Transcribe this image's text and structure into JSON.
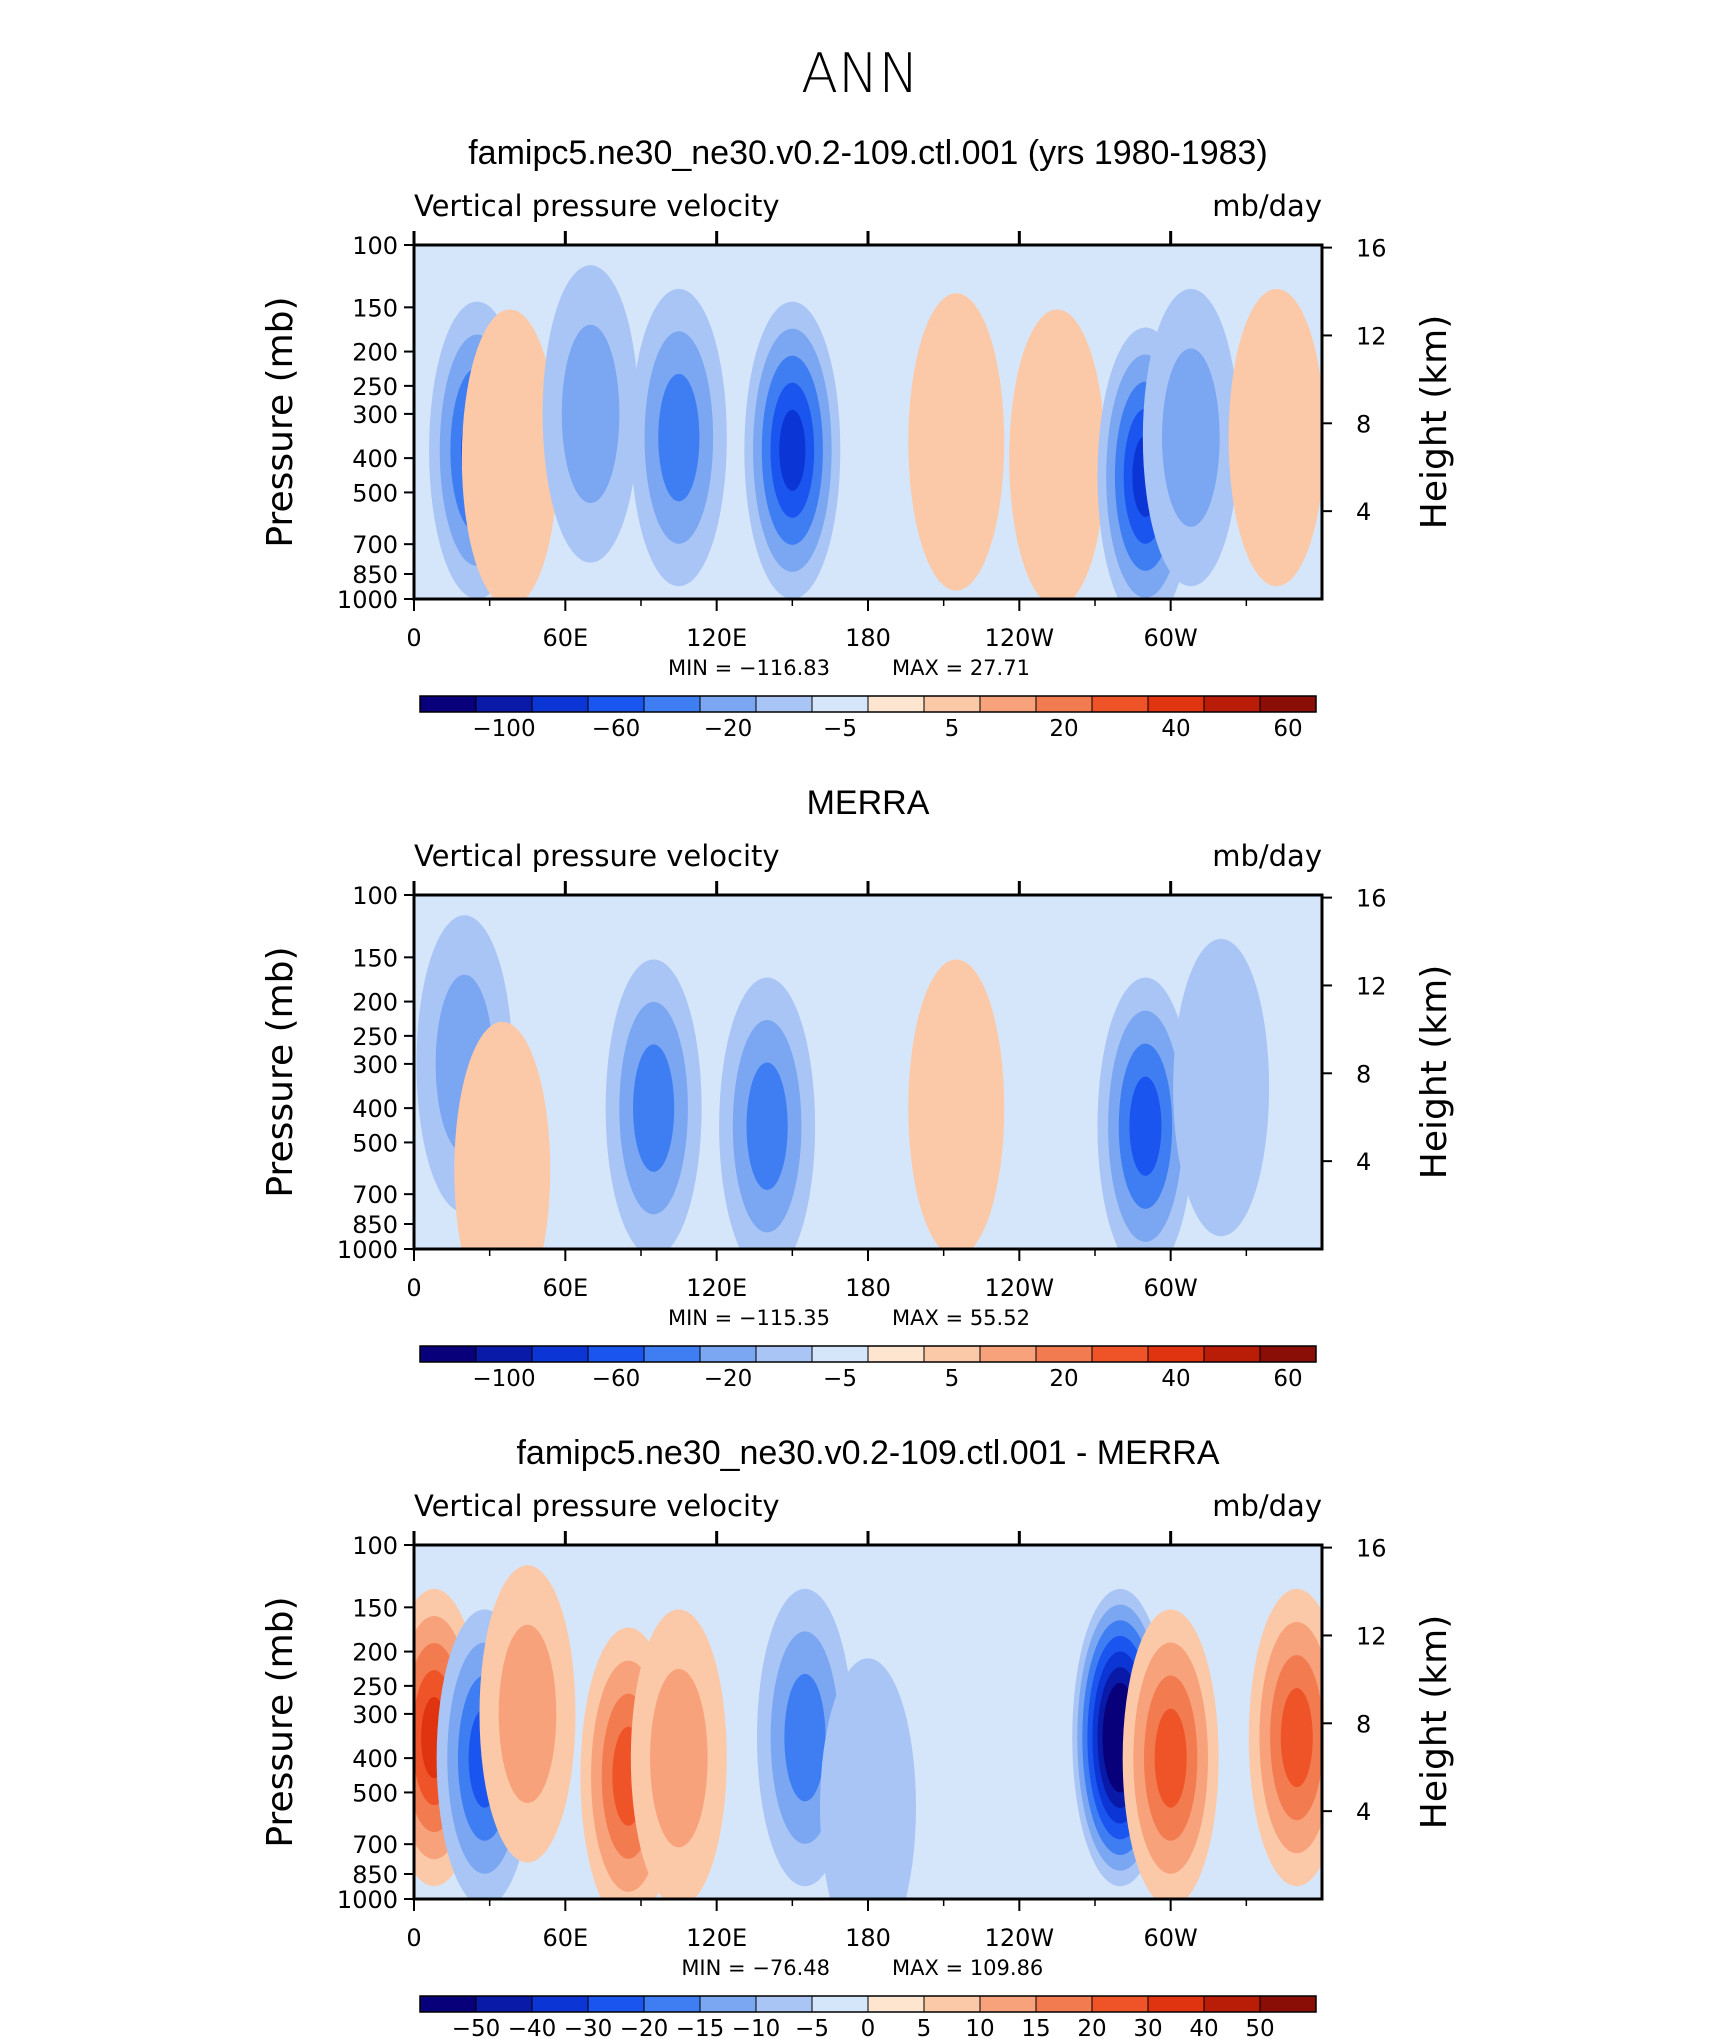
{
  "figure": {
    "title": "ANN"
  },
  "chart_data": [
    {
      "type": "heatmap",
      "title": "famipc5.ne30_ne30.v0.2-109.ctl.001 (yrs 1980-1983)",
      "left_label": "Vertical pressure velocity",
      "right_label": "mb/day",
      "ylabel": "Pressure (mb)",
      "ylabel_right": "Height (km)",
      "x_ticks": [
        "0",
        "60E",
        "120E",
        "180",
        "120W",
        "60W"
      ],
      "y_ticks": [
        "100",
        "150",
        "200",
        "250",
        "300",
        "400",
        "500",
        "700",
        "850",
        "1000"
      ],
      "y_ticks_right": [
        "16",
        "12",
        "8",
        "4"
      ],
      "ylim": [
        1000,
        100
      ],
      "min_text": "MIN =  −116.83",
      "max_text": "MAX =   27.71",
      "colorbar": {
        "levels": [
          "−100",
          "−60",
          "−20",
          "−5",
          "5",
          "20",
          "40",
          "60"
        ],
        "colors": [
          "#08007a",
          "#0a1aa8",
          "#0c35d6",
          "#1a55f0",
          "#3f7ef2",
          "#7aa6f2",
          "#a9c5f5",
          "#d5e6fb",
          "#fde5cf",
          "#fcc9a8",
          "#f7a27b",
          "#f37b50",
          "#ef5428",
          "#e0330f",
          "#b91d08",
          "#8a0e05"
        ]
      },
      "features": [
        {
          "x": 25,
          "p": 380,
          "v": -60
        },
        {
          "x": 38,
          "p": 400,
          "v": 10
        },
        {
          "x": 70,
          "p": 300,
          "v": -30
        },
        {
          "x": 105,
          "p": 350,
          "v": -50
        },
        {
          "x": 150,
          "p": 380,
          "v": -70
        },
        {
          "x": 215,
          "p": 360,
          "v": 5
        },
        {
          "x": 255,
          "p": 400,
          "v": 18
        },
        {
          "x": 290,
          "p": 450,
          "v": -80
        },
        {
          "x": 308,
          "p": 350,
          "v": -25
        },
        {
          "x": 342,
          "p": 350,
          "v": 15
        }
      ]
    },
    {
      "type": "heatmap",
      "title": "MERRA",
      "left_label": "Vertical pressure velocity",
      "right_label": "mb/day",
      "ylabel": "Pressure (mb)",
      "ylabel_right": "Height (km)",
      "x_ticks": [
        "0",
        "60E",
        "120E",
        "180",
        "120W",
        "60W"
      ],
      "y_ticks": [
        "100",
        "150",
        "200",
        "250",
        "300",
        "400",
        "500",
        "700",
        "850",
        "1000"
      ],
      "y_ticks_right": [
        "16",
        "12",
        "8",
        "4"
      ],
      "ylim": [
        1000,
        100
      ],
      "min_text": "MIN =  −115.35",
      "max_text": "MAX =   55.52",
      "colorbar": {
        "levels": [
          "−100",
          "−60",
          "−20",
          "−5",
          "5",
          "20",
          "40",
          "60"
        ],
        "colors": [
          "#08007a",
          "#0a1aa8",
          "#0c35d6",
          "#1a55f0",
          "#3f7ef2",
          "#7aa6f2",
          "#a9c5f5",
          "#d5e6fb",
          "#fde5cf",
          "#fcc9a8",
          "#f7a27b",
          "#f37b50",
          "#ef5428",
          "#e0330f",
          "#b91d08",
          "#8a0e05"
        ]
      },
      "features": [
        {
          "x": 20,
          "p": 300,
          "v": -30
        },
        {
          "x": 35,
          "p": 600,
          "v": 15
        },
        {
          "x": 95,
          "p": 400,
          "v": -45
        },
        {
          "x": 140,
          "p": 450,
          "v": -45
        },
        {
          "x": 215,
          "p": 400,
          "v": 20
        },
        {
          "x": 290,
          "p": 450,
          "v": -60
        },
        {
          "x": 320,
          "p": 350,
          "v": -10
        }
      ]
    },
    {
      "type": "heatmap",
      "title": "famipc5.ne30_ne30.v0.2-109.ctl.001 - MERRA",
      "left_label": "Vertical pressure velocity",
      "right_label": "mb/day",
      "ylabel": "Pressure (mb)",
      "ylabel_right": "Height (km)",
      "x_ticks": [
        "0",
        "60E",
        "120E",
        "180",
        "120W",
        "60W"
      ],
      "y_ticks": [
        "100",
        "150",
        "200",
        "250",
        "300",
        "400",
        "500",
        "700",
        "850",
        "1000"
      ],
      "y_ticks_right": [
        "16",
        "12",
        "8",
        "4"
      ],
      "ylim": [
        1000,
        100
      ],
      "min_text": "MIN =  −76.48",
      "max_text": "MAX =  109.86",
      "colorbar": {
        "levels": [
          "−50",
          "−40",
          "−30",
          "−20",
          "−15",
          "−10",
          "−5",
          "0",
          "5",
          "10",
          "15",
          "20",
          "30",
          "40",
          "50"
        ],
        "colors": [
          "#08007a",
          "#0a1aa8",
          "#0c35d6",
          "#1a55f0",
          "#3f7ef2",
          "#7aa6f2",
          "#a9c5f5",
          "#d5e6fb",
          "#fde5cf",
          "#fcc9a8",
          "#f7a27b",
          "#f37b50",
          "#ef5428",
          "#e0330f",
          "#b91d08",
          "#8a0e05"
        ]
      },
      "features": [
        {
          "x": 8,
          "p": 350,
          "v": 35
        },
        {
          "x": 28,
          "p": 400,
          "v": -25
        },
        {
          "x": 45,
          "p": 300,
          "v": 15
        },
        {
          "x": 85,
          "p": 450,
          "v": 25
        },
        {
          "x": 105,
          "p": 400,
          "v": 15
        },
        {
          "x": 155,
          "p": 350,
          "v": -20
        },
        {
          "x": 180,
          "p": 550,
          "v": -10
        },
        {
          "x": 280,
          "p": 350,
          "v": -60
        },
        {
          "x": 300,
          "p": 400,
          "v": 30
        },
        {
          "x": 350,
          "p": 350,
          "v": 25
        }
      ]
    }
  ]
}
